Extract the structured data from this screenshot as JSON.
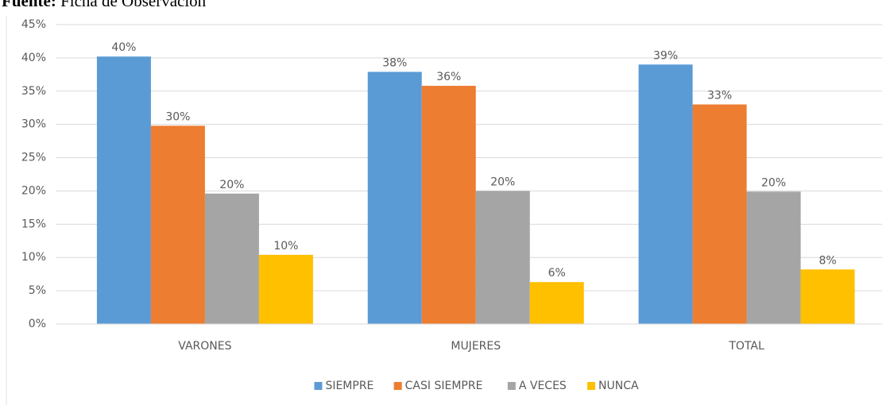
{
  "header": {
    "label": "Fuente:",
    "text": "Ficha de Observación"
  },
  "chart_data": {
    "type": "bar",
    "categories": [
      "VARONES",
      "MUJERES",
      "TOTAL"
    ],
    "series": [
      {
        "name": "SIEMPRE",
        "color": "#5b9bd5",
        "values": [
          40.2,
          37.9,
          39
        ],
        "value_labels": [
          "40%",
          "38%",
          "39%"
        ]
      },
      {
        "name": "CASI SIEMPRE",
        "color": "#ed7d31",
        "values": [
          29.8,
          35.8,
          33
        ],
        "value_labels": [
          "30%",
          "36%",
          "33%"
        ]
      },
      {
        "name": "A VECES",
        "color": "#a5a5a5",
        "values": [
          19.6,
          20,
          19.9
        ],
        "value_labels": [
          "20%",
          "20%",
          "20%"
        ]
      },
      {
        "name": "NUNCA",
        "color": "#ffc000",
        "values": [
          10.4,
          6.3,
          8.2
        ],
        "value_labels": [
          "10%",
          "6%",
          "8%"
        ]
      }
    ],
    "ylim": [
      0,
      45
    ],
    "yticks": [
      {
        "value": 0,
        "label": "0%"
      },
      {
        "value": 5,
        "label": "5%"
      },
      {
        "value": 10,
        "label": "10%"
      },
      {
        "value": 15,
        "label": "15%"
      },
      {
        "value": 20,
        "label": "20%"
      },
      {
        "value": 25,
        "label": "25%"
      },
      {
        "value": 30,
        "label": "30%"
      },
      {
        "value": 35,
        "label": "35%"
      },
      {
        "value": 40,
        "label": "40%"
      },
      {
        "value": 45,
        "label": "45%"
      }
    ],
    "grid": true,
    "legend": "bottom"
  }
}
